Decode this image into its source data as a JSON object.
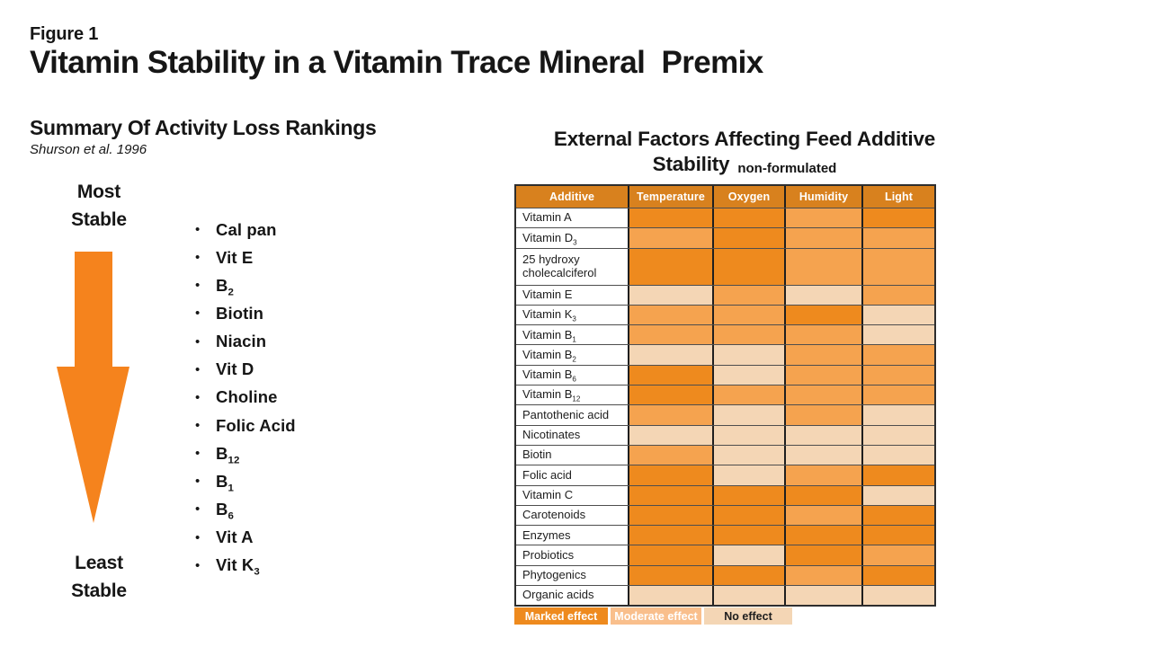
{
  "figure": {
    "label": "Figure 1",
    "title": "Vitamin Stability in a Vitamin Trace Mineral  Premix"
  },
  "left_panel": {
    "heading": "Summary Of Activity Loss Rankings",
    "source": "Shurson et al. 1996",
    "top_label": "Most\nStable",
    "bottom_label": "Least\nStable",
    "arrow_color": "#F5831D",
    "items": [
      {
        "text": "Cal pan",
        "sub": ""
      },
      {
        "text": "Vit E",
        "sub": ""
      },
      {
        "text": "B",
        "sub": "2"
      },
      {
        "text": "Biotin",
        "sub": ""
      },
      {
        "text": "Niacin",
        "sub": ""
      },
      {
        "text": "Vit D",
        "sub": ""
      },
      {
        "text": "Choline",
        "sub": ""
      },
      {
        "text": "Folic Acid",
        "sub": ""
      },
      {
        "text": "B",
        "sub": "12"
      },
      {
        "text": "B",
        "sub": "1"
      },
      {
        "text": "B",
        "sub": "6"
      },
      {
        "text": "Vit A",
        "sub": ""
      },
      {
        "text": "Vit K",
        "sub": "3"
      }
    ]
  },
  "right_panel": {
    "title_line1": "External Factors Affecting Feed Additive",
    "title_line2": "Stability",
    "title_suffix": "non-formulated",
    "colors": {
      "marked": "#EE8A1E",
      "moderate": "#F5A34F",
      "none": "#F4D6B5",
      "header_bg": "#D8811E",
      "legend_moderate_bg": "#F9BF8C"
    },
    "legend": [
      {
        "label": "Marked effect",
        "color_key": "marked",
        "text_color": "#FFFFFF"
      },
      {
        "label": "Moderate effect",
        "color_key": "legend_moderate_bg",
        "text_color": "#FFFFFF"
      },
      {
        "label": "No effect",
        "color_key": "none",
        "text_color": "#1D1D1D"
      }
    ]
  },
  "chart_data": {
    "type": "heatmap",
    "title": "External Factors Affecting Feed Additive Stability",
    "subtitle": "non-formulated",
    "columns": [
      "Additive",
      "Temperature",
      "Oxygen",
      "Humidity",
      "Light"
    ],
    "legend_levels": [
      "marked",
      "moderate",
      "none"
    ],
    "rows": [
      {
        "label": "Vitamin A",
        "sub": "",
        "tall": false,
        "effects": [
          "marked",
          "marked",
          "moderate",
          "marked"
        ]
      },
      {
        "label": "Vitamin D",
        "sub": "3",
        "tall": false,
        "effects": [
          "moderate",
          "marked",
          "moderate",
          "moderate"
        ]
      },
      {
        "label": "25 hydroxy cholecalciferol",
        "sub": "",
        "tall": true,
        "effects": [
          "marked",
          "marked",
          "moderate",
          "moderate"
        ]
      },
      {
        "label": "Vitamin E",
        "sub": "",
        "tall": false,
        "effects": [
          "none",
          "moderate",
          "none",
          "moderate"
        ]
      },
      {
        "label": "Vitamin K",
        "sub": "3",
        "tall": false,
        "effects": [
          "moderate",
          "moderate",
          "marked",
          "none"
        ]
      },
      {
        "label": "Vitamin B",
        "sub": "1",
        "tall": false,
        "effects": [
          "moderate",
          "moderate",
          "moderate",
          "none"
        ]
      },
      {
        "label": "Vitamin B",
        "sub": "2",
        "tall": false,
        "effects": [
          "none",
          "none",
          "moderate",
          "moderate"
        ]
      },
      {
        "label": "Vitamin B",
        "sub": "6",
        "tall": false,
        "effects": [
          "marked",
          "none",
          "moderate",
          "moderate"
        ]
      },
      {
        "label": "Vitamin B",
        "sub": "12",
        "tall": false,
        "effects": [
          "marked",
          "moderate",
          "moderate",
          "moderate"
        ]
      },
      {
        "label": "Pantothenic acid",
        "sub": "",
        "tall": false,
        "effects": [
          "moderate",
          "none",
          "moderate",
          "none"
        ]
      },
      {
        "label": "Nicotinates",
        "sub": "",
        "tall": false,
        "effects": [
          "none",
          "none",
          "none",
          "none"
        ]
      },
      {
        "label": "Biotin",
        "sub": "",
        "tall": false,
        "effects": [
          "moderate",
          "none",
          "none",
          "none"
        ]
      },
      {
        "label": "Folic acid",
        "sub": "",
        "tall": false,
        "effects": [
          "marked",
          "none",
          "moderate",
          "marked"
        ]
      },
      {
        "label": "Vitamin C",
        "sub": "",
        "tall": false,
        "effects": [
          "marked",
          "marked",
          "marked",
          "none"
        ]
      },
      {
        "label": "Carotenoids",
        "sub": "",
        "tall": false,
        "effects": [
          "marked",
          "marked",
          "moderate",
          "marked"
        ]
      },
      {
        "label": "Enzymes",
        "sub": "",
        "tall": false,
        "effects": [
          "marked",
          "marked",
          "marked",
          "marked"
        ]
      },
      {
        "label": "Probiotics",
        "sub": "",
        "tall": false,
        "effects": [
          "marked",
          "none",
          "marked",
          "moderate"
        ]
      },
      {
        "label": "Phytogenics",
        "sub": "",
        "tall": false,
        "effects": [
          "marked",
          "marked",
          "moderate",
          "marked"
        ]
      },
      {
        "label": "Organic acids",
        "sub": "",
        "tall": false,
        "effects": [
          "none",
          "none",
          "none",
          "none"
        ]
      }
    ],
    "ranking_most_to_least_stable": [
      "Cal pan",
      "Vit E",
      "B2",
      "Biotin",
      "Niacin",
      "Vit D",
      "Choline",
      "Folic Acid",
      "B12",
      "B1",
      "B6",
      "Vit A",
      "Vit K3"
    ]
  }
}
